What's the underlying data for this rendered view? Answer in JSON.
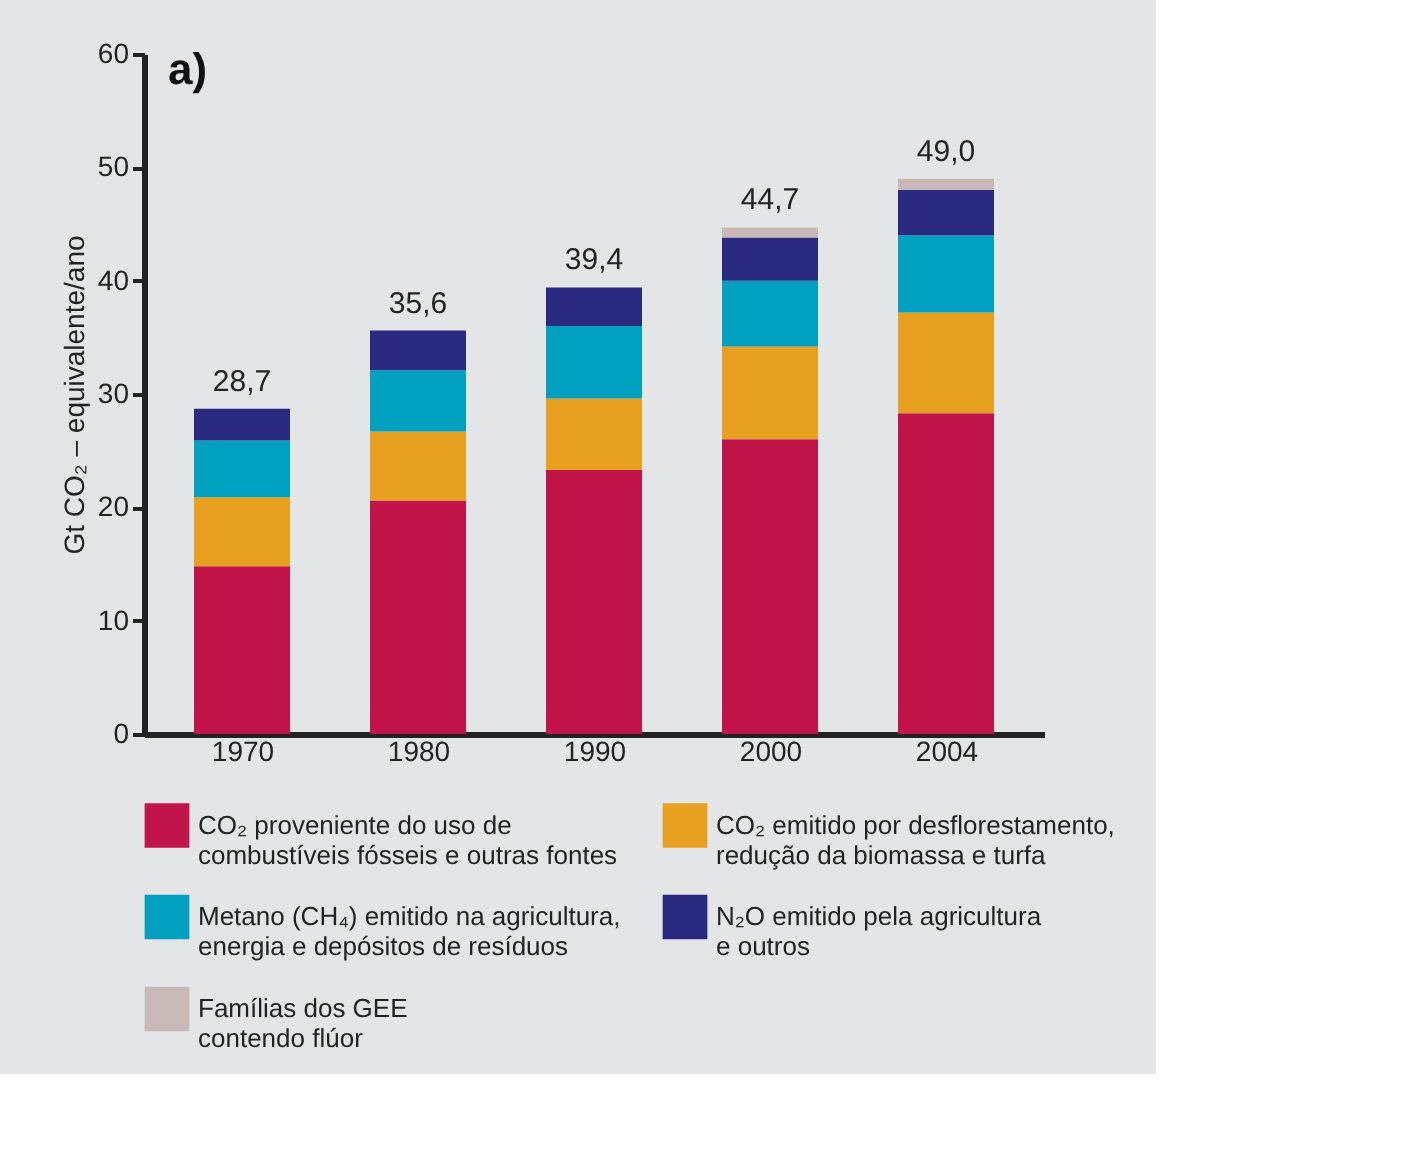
{
  "chart_data": {
    "type": "bar",
    "stacked": true,
    "annotations": [
      "a)"
    ],
    "ylabel": "Gt CO₂ – equivalente/ano",
    "categories": [
      "1970",
      "1980",
      "1990",
      "2000",
      "2004"
    ],
    "series": [
      {
        "name": "CO₂ proveniente do uso de\ncombustíveis fósseis e outras fontes",
        "color": "#c0144a",
        "values": [
          14.8,
          20.6,
          23.3,
          26.0,
          28.3
        ]
      },
      {
        "name": "CO₂ emitido por desflorestamento,\nredução da biomassa e turfa",
        "color": "#e8a020",
        "values": [
          6.1,
          6.1,
          6.3,
          8.2,
          8.9
        ]
      },
      {
        "name": "Metano (CH₄) emitido na agricultura,\nenergia e depósitos de resíduos",
        "color": "#00a0c0",
        "values": [
          5.0,
          5.4,
          6.4,
          5.8,
          6.8
        ]
      },
      {
        "name": "N₂O emitido pela agricultura\ne outros",
        "color": "#2a2a80",
        "values": [
          2.8,
          3.5,
          3.4,
          3.8,
          4.0
        ]
      },
      {
        "name": "Famílias dos GEE\ncontendo flúor",
        "color": "#c8b8b8",
        "values": [
          null,
          null,
          null,
          0.9,
          1.0
        ]
      }
    ],
    "totals": [
      "28,7",
      "35,6",
      "39,4",
      "44,7",
      "49,0"
    ],
    "ylim": [
      0,
      60
    ],
    "yticks": [
      0,
      10,
      20,
      30,
      40,
      50,
      60
    ],
    "grid": false,
    "legend": "bottom"
  }
}
